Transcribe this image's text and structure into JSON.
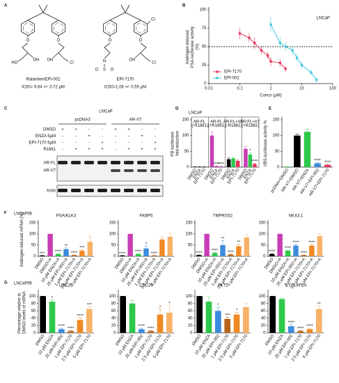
{
  "figure": {
    "A": {
      "label": "A",
      "structures": [
        {
          "name": "Ralaniten/EPI-002",
          "ic50": "IC50= 9.64 +/- 3.72 μM",
          "atoms": [
            "O",
            "OH",
            "HO",
            "O",
            "OH",
            "Cl"
          ]
        },
        {
          "name": "EPI-7170",
          "ic50": "IC50=1.08 +/- 0.55 μM",
          "atoms": [
            "O",
            "N",
            "S",
            "O",
            "O",
            "O",
            "OH",
            "Cl",
            "Cl"
          ]
        }
      ]
    },
    "C": {
      "label": "C",
      "title": "LNCaP",
      "groups": [
        "pcDNA3",
        "AR-V7"
      ],
      "rows": [
        {
          "name": "DMSO",
          "signs": [
            "+",
            "+",
            "-",
            "-",
            "+",
            "+",
            "-",
            "-"
          ]
        },
        {
          "name": "ENZA 5μM",
          "signs": [
            "-",
            "-",
            "+",
            "-",
            "-",
            "-",
            "+",
            "-"
          ]
        },
        {
          "name": "EPI-7170 5μM",
          "signs": [
            "-",
            "-",
            "-",
            "+",
            "-",
            "-",
            "-",
            "+"
          ]
        },
        {
          "name": "R1881",
          "signs": [
            "-",
            "+",
            "+",
            "+",
            "-",
            "+",
            "+",
            "+"
          ]
        }
      ],
      "bands": [
        "AR-FL",
        "AR-V7"
      ],
      "loading": "Actin"
    }
  },
  "chart_data": [
    {
      "type": "scatter",
      "label": "B",
      "title": "LNCaP",
      "xlabel": "Concn (μM)",
      "ylabel": "Androgen-induced PSA-luciferase activity (%)",
      "xscale": "log",
      "xlim": [
        0.01,
        100
      ],
      "xticks": [
        0.01,
        0.1,
        1,
        10,
        100
      ],
      "ylim": [
        0,
        100
      ],
      "yticks": [
        0,
        25,
        50,
        75,
        100
      ],
      "hline": 50,
      "legend": "bottom-left",
      "series": [
        {
          "name": "EPI-7170",
          "color": "#e8325a",
          "x": [
            0.1,
            0.2,
            0.3,
            0.5,
            0.8,
            1,
            2,
            3
          ],
          "values": [
            68,
            62,
            55,
            45,
            38,
            30,
            28,
            20
          ],
          "errors": [
            8,
            6,
            8,
            6,
            5,
            6,
            5,
            4
          ]
        },
        {
          "name": "EPI-002",
          "color": "#3fc8e0",
          "x": [
            1,
            2,
            3,
            5,
            7,
            10,
            20,
            30
          ],
          "values": [
            80,
            55,
            50,
            45,
            35,
            25,
            15,
            5
          ],
          "errors": [
            10,
            8,
            6,
            6,
            5,
            5,
            4,
            3
          ]
        }
      ]
    },
    {
      "type": "bar",
      "label": "D",
      "title": "LNCaP",
      "ylabel": "PB-luciferase fold-induction",
      "categories": [
        "AR-FL (-R1881)",
        "AR-FL (+R1881)",
        "AR-FL+V7 (-R1881)",
        "AR-FL+V7 (+R1881)"
      ],
      "ylim": [
        0,
        150
      ],
      "yticks": [
        0,
        50,
        100,
        150
      ],
      "series": [
        {
          "name": "DMSO",
          "colors": [
            "#000000",
            "#c83cb4",
            "#000000",
            "#c83cb4"
          ],
          "values": [
            1,
            100,
            25,
            58
          ],
          "errors": [
            0.5,
            12,
            4,
            8
          ],
          "stars": [
            null,
            null,
            null,
            null
          ]
        },
        {
          "name": "ENZA",
          "colors": [
            "#000000",
            "#c83cb4",
            "#2ec84a",
            "#2ec84a"
          ],
          "values": [
            1,
            3,
            28,
            40
          ],
          "errors": [
            0.5,
            1,
            5,
            6
          ],
          "stars": [
            null,
            "****",
            null,
            "*"
          ]
        },
        {
          "name": "EPI-7170",
          "colors": [
            "#000000",
            "#c83cb4",
            "#e8325a",
            "#e8325a"
          ],
          "values": [
            1,
            2,
            20,
            10
          ],
          "errors": [
            0.5,
            1,
            3,
            2
          ],
          "stars": [
            null,
            "****",
            null,
            "****"
          ]
        }
      ]
    },
    {
      "type": "bar",
      "label": "E",
      "ylabel": "VBS-luciferase activity %",
      "categories": [
        "pcDNA+DMSO",
        "AR-V7+DMSO",
        "AR-V7+ENZA",
        "AR-V7+EPI-002",
        "AR-V7+EPI-7170"
      ],
      "values": [
        1,
        100,
        112,
        12,
        7
      ],
      "errors": [
        0.5,
        5,
        8,
        3,
        2
      ],
      "colors": [
        "#2ec84a",
        "#000000",
        "#2ec84a",
        "#3c8cdc",
        "#e8325a"
      ],
      "stars": [
        null,
        null,
        null,
        "****",
        "****"
      ],
      "ylim": [
        0,
        150
      ],
      "yticks": [
        0,
        50,
        100,
        150
      ]
    },
    {
      "type": "bar",
      "label": "F",
      "group_title": "LNCaP95",
      "ylabel": "Androgen-induced mRNA (%)",
      "title": "PSA/KLK3",
      "categories": [
        "DMSO",
        "DMSO+A",
        "10 μM ENZA+A",
        "25 μM EPI-002+A",
        "1 μM EPI-7170+A",
        "2.5 μM EPI-7170+A",
        "5 μM EPI-7170+A"
      ],
      "values": [
        3,
        100,
        10,
        32,
        5,
        25,
        65
      ],
      "errors": [
        1,
        0,
        2,
        6,
        1,
        5,
        25
      ],
      "stars": [
        "***",
        null,
        "****",
        "**",
        "****",
        "***",
        null
      ],
      "colors": [
        "#000000",
        "#c83cb4",
        "#2ec84a",
        "#3c8cdc",
        "#b8651b",
        "#f08a24",
        "#f7b267"
      ],
      "ylim": [
        0,
        150
      ],
      "yticks": [
        0,
        50,
        100,
        150
      ]
    },
    {
      "type": "bar",
      "title": "FKBP5",
      "categories": [
        "DMSO",
        "DMSO+A",
        "10 μM ENZA+A",
        "25 μM EPI-002+A",
        "1 μM EPI-7170+A",
        "2.5 μM EPI-7170+A",
        "5 μM EPI-7170+A"
      ],
      "values": [
        3,
        100,
        10,
        35,
        3,
        75,
        88
      ],
      "errors": [
        1,
        0,
        2,
        12,
        1,
        10,
        15
      ],
      "stars": [
        "****",
        null,
        "****",
        "*",
        "****",
        null,
        null
      ],
      "colors": [
        "#000000",
        "#c83cb4",
        "#2ec84a",
        "#3c8cdc",
        "#b8651b",
        "#f08a24",
        "#f7b267"
      ],
      "ylim": [
        0,
        150
      ],
      "yticks": [
        0,
        50,
        100,
        150
      ]
    },
    {
      "type": "bar",
      "title": "TMPRSS2",
      "categories": [
        "DMSO",
        "DMSO+A",
        "10 μM ENZA+A",
        "25 μM EPI-002+A",
        "1 μM EPI-7170+A",
        "2.5 μM EPI-7170+A",
        "5 μM EPI-7170+A"
      ],
      "values": [
        5,
        100,
        15,
        50,
        8,
        45,
        85
      ],
      "errors": [
        1,
        0,
        3,
        20,
        2,
        10,
        12
      ],
      "stars": [
        "****",
        null,
        "****",
        "**",
        "****",
        "**",
        null
      ],
      "colors": [
        "#000000",
        "#c83cb4",
        "#2ec84a",
        "#3c8cdc",
        "#b8651b",
        "#f08a24",
        "#f7b267"
      ],
      "ylim": [
        0,
        150
      ],
      "yticks": [
        0,
        50,
        100,
        150
      ]
    },
    {
      "type": "bar",
      "title": "NKX3.1",
      "categories": [
        "DMSO",
        "DMSO+A",
        "10 μM ENZA+A",
        "25 μM EPI-002+A",
        "1 μM EPI-7170+A",
        "2.5 μM EPI-7170+A",
        "5 μM EPI-7170+A"
      ],
      "values": [
        10,
        100,
        25,
        48,
        5,
        48,
        90
      ],
      "errors": [
        2,
        0,
        3,
        5,
        1,
        6,
        12
      ],
      "stars": [
        "****",
        null,
        "****",
        "****",
        "****",
        "****",
        null
      ],
      "colors": [
        "#000000",
        "#c83cb4",
        "#2ec84a",
        "#3c8cdc",
        "#b8651b",
        "#f08a24",
        "#f7b267"
      ],
      "ylim": [
        0,
        150
      ],
      "yticks": [
        0,
        50,
        100,
        150
      ]
    },
    {
      "type": "bar",
      "label": "G",
      "group_title": "LNCaP95",
      "ylabel": "Percentage relative to DMSO levels of mRNA",
      "title": "UBE2C",
      "categories": [
        "DMSO",
        "10 μM ENZA",
        "25 μM EPI-002",
        "1 μM EPI-7170",
        "2.5 μM EPI-7170",
        "5 μM EPI-7170"
      ],
      "values": [
        100,
        85,
        10,
        5,
        35,
        65
      ],
      "errors": [
        0,
        5,
        3,
        2,
        6,
        6
      ],
      "stars": [
        null,
        "*",
        "****",
        "****",
        "****",
        "***"
      ],
      "colors": [
        "#000000",
        "#2ec84a",
        "#3c8cdc",
        "#b8651b",
        "#f08a24",
        "#f7b267"
      ],
      "ylim": [
        0,
        110
      ],
      "yticks": [
        0,
        20,
        40,
        60,
        80,
        100
      ]
    },
    {
      "type": "bar",
      "title": "CDC20",
      "categories": [
        "DMSO",
        "10 μM ENZA",
        "25 μM EPI-002",
        "1 μM EPI-7170",
        "2.5 μM EPI-7170",
        "5 μM EPI-7170"
      ],
      "values": [
        100,
        80,
        10,
        5,
        50,
        55
      ],
      "errors": [
        0,
        8,
        3,
        2,
        15,
        20
      ],
      "stars": [
        null,
        null,
        "****",
        "****",
        "*",
        "*"
      ],
      "colors": [
        "#000000",
        "#2ec84a",
        "#3c8cdc",
        "#b8651b",
        "#f08a24",
        "#f7b267"
      ],
      "ylim": [
        0,
        110
      ],
      "yticks": [
        0,
        20,
        40,
        60,
        80,
        100
      ]
    },
    {
      "type": "bar",
      "title": "AKT1",
      "categories": [
        "DMSO",
        "10 μM ENZA",
        "25 μM EPI-002",
        "1 μM EPI-7170",
        "2.5 μM EPI-7170",
        "5 μM EPI-7170"
      ],
      "values": [
        100,
        85,
        60,
        38,
        50,
        70
      ],
      "errors": [
        0,
        12,
        10,
        5,
        6,
        10
      ],
      "stars": [
        null,
        null,
        "*",
        "***",
        "*",
        null
      ],
      "colors": [
        "#000000",
        "#2ec84a",
        "#3c8cdc",
        "#b8651b",
        "#f08a24",
        "#f7b267"
      ],
      "ylim": [
        0,
        110
      ],
      "yticks": [
        0,
        20,
        40,
        60,
        80,
        100
      ]
    },
    {
      "type": "bar",
      "title": "CYCLIN 2A",
      "categories": [
        "DMSO",
        "10 μM ENZA",
        "25 μM EPI-002",
        "1 μM EPI-7170",
        "2.5 μM EPI-7170",
        "5 μM EPI-7170"
      ],
      "values": [
        100,
        92,
        18,
        5,
        10,
        65
      ],
      "errors": [
        0,
        3,
        5,
        2,
        3,
        8
      ],
      "stars": [
        null,
        null,
        "****",
        "****",
        "****",
        "**"
      ],
      "colors": [
        "#000000",
        "#2ec84a",
        "#3c8cdc",
        "#b8651b",
        "#f08a24",
        "#f7b267"
      ],
      "ylim": [
        0,
        110
      ],
      "yticks": [
        0,
        20,
        40,
        60,
        80,
        100
      ]
    }
  ]
}
